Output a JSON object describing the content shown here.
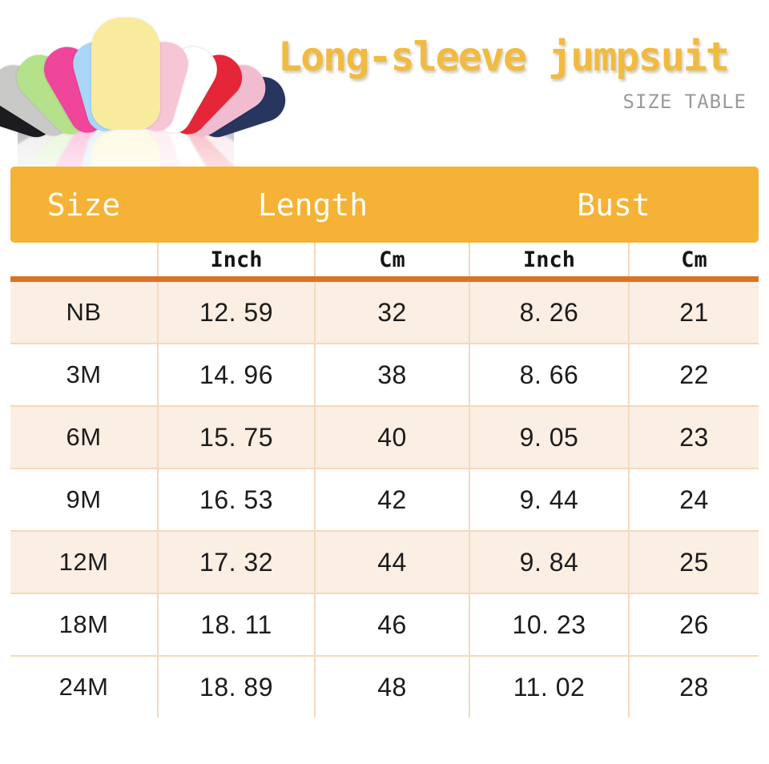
{
  "title": {
    "text": "Long-sleeve jumpsuit",
    "subtitle": "SIZE TABLE"
  },
  "hero": {
    "description": "fan of long-sleeve baby jumpsuits in assorted colors with floor reflection",
    "product_colors": [
      {
        "name": "black",
        "hex": "#1b1b20"
      },
      {
        "name": "gray",
        "hex": "#c9c9c7"
      },
      {
        "name": "light-green",
        "hex": "#b4e18a"
      },
      {
        "name": "hot-pink",
        "hex": "#ef459b"
      },
      {
        "name": "light-blue",
        "hex": "#a9d5f6"
      },
      {
        "name": "yellow",
        "hex": "#f8eb9e"
      },
      {
        "name": "light-pink",
        "hex": "#f6c5d6"
      },
      {
        "name": "white",
        "hex": "#ffffff"
      },
      {
        "name": "red",
        "hex": "#e52639"
      },
      {
        "name": "pink",
        "hex": "#f2bcd0"
      },
      {
        "name": "navy",
        "hex": "#27355f"
      }
    ]
  },
  "colors": {
    "header_bg": "#F5B237",
    "divider": "#DD7226",
    "row_shade": "#FBEEE2",
    "grid_line": "#F3D9BE",
    "title_text": "#F0BB40",
    "subtitle_text": "#9A9A9A",
    "body_text": "#1C1C1C",
    "header_text": "#FFFDF2"
  },
  "table": {
    "header": [
      "Size",
      "Length",
      "Bust"
    ],
    "subheader": [
      "Inch",
      "Cm",
      "Inch",
      "Cm"
    ],
    "rows": [
      {
        "size": "NB",
        "length_inch": "12. 59",
        "length_cm": "32",
        "bust_inch": "8. 26",
        "bust_cm": "21"
      },
      {
        "size": "3M",
        "length_inch": "14. 96",
        "length_cm": "38",
        "bust_inch": "8. 66",
        "bust_cm": "22"
      },
      {
        "size": "6M",
        "length_inch": "15. 75",
        "length_cm": "40",
        "bust_inch": "9. 05",
        "bust_cm": "23"
      },
      {
        "size": "9M",
        "length_inch": "16. 53",
        "length_cm": "42",
        "bust_inch": "9. 44",
        "bust_cm": "24"
      },
      {
        "size": "12M",
        "length_inch": "17. 32",
        "length_cm": "44",
        "bust_inch": "9. 84",
        "bust_cm": "25"
      },
      {
        "size": "18M",
        "length_inch": "18. 11",
        "length_cm": "46",
        "bust_inch": "10. 23",
        "bust_cm": "26"
      },
      {
        "size": "24M",
        "length_inch": "18. 89",
        "length_cm": "48",
        "bust_inch": "11. 02",
        "bust_cm": "28"
      }
    ]
  },
  "chart_data": {
    "type": "table",
    "title": "Long-sleeve jumpsuit",
    "subtitle": "SIZE TABLE",
    "columns": [
      "Size",
      "Length (Inch)",
      "Length (Cm)",
      "Bust (Inch)",
      "Bust (Cm)"
    ],
    "rows": [
      [
        "NB",
        12.59,
        32,
        8.26,
        21
      ],
      [
        "3M",
        14.96,
        38,
        8.66,
        22
      ],
      [
        "6M",
        15.75,
        40,
        9.05,
        23
      ],
      [
        "9M",
        16.53,
        42,
        9.44,
        24
      ],
      [
        "12M",
        17.32,
        44,
        9.84,
        25
      ],
      [
        "18M",
        18.11,
        46,
        10.23,
        26
      ],
      [
        "24M",
        18.89,
        48,
        11.02,
        28
      ]
    ]
  }
}
